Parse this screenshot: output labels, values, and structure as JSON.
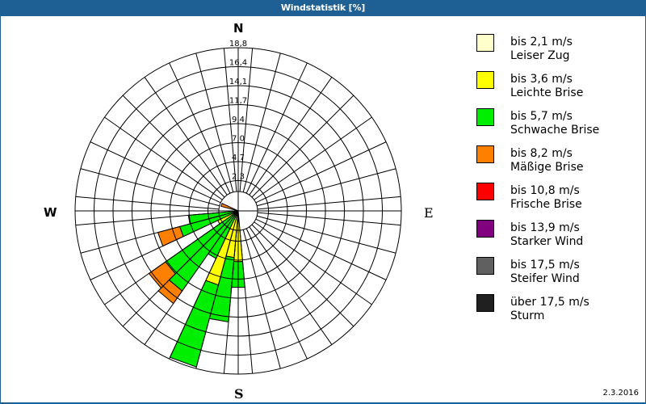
{
  "window": {
    "title": "Windstatistik [%]"
  },
  "compass": {
    "n": "N",
    "e": "E",
    "s": "S",
    "w": "W"
  },
  "footer": {
    "date": "2.3.2016"
  },
  "legend": [
    {
      "range": "bis 2,1 m/s",
      "name": "Leiser Zug",
      "color": "#ffffcc"
    },
    {
      "range": "bis 3,6 m/s",
      "name": "Leichte Brise",
      "color": "#ffff00"
    },
    {
      "range": "bis 5,7 m/s",
      "name": "Schwache Brise",
      "color": "#00ee00"
    },
    {
      "range": "bis 8,2 m/s",
      "name": "Mäßige Brise",
      "color": "#ff8000"
    },
    {
      "range": "bis 10,8 m/s",
      "name": "Frische Brise",
      "color": "#ff0000"
    },
    {
      "range": "bis 13,9 m/s",
      "name": "Starker Wind",
      "color": "#800080"
    },
    {
      "range": "bis 17,5 m/s",
      "name": "Steifer Wind",
      "color": "#606060"
    },
    {
      "range": "über 17,5 m/s",
      "name": "Sturm",
      "color": "#202020"
    }
  ],
  "chart_data": {
    "type": "wind-rose (polar stacked bar)",
    "title": "Windstatistik [%]",
    "radial_ticks": [
      "2,3",
      "4,7",
      "7,0",
      "9,4",
      "11,7",
      "14,1",
      "16,4",
      "18,8"
    ],
    "radial_max": 18.8,
    "sector_width_deg": 10,
    "directions": [
      "N",
      "E",
      "S",
      "W"
    ],
    "series_order": [
      "bis 2,1 m/s",
      "bis 3,6 m/s",
      "bis 5,7 m/s",
      "bis 8,2 m/s"
    ],
    "sectors": [
      {
        "dir_deg": 180,
        "segments": [
          {
            "class": "bis 3,6 m/s",
            "to": 4.9
          },
          {
            "class": "bis 5,7 m/s",
            "to": 8.1
          }
        ]
      },
      {
        "dir_deg": 190,
        "segments": [
          {
            "class": "bis 3,6 m/s",
            "to": 4.4
          },
          {
            "class": "bis 5,7 m/s",
            "to": 12.4
          }
        ]
      },
      {
        "dir_deg": 200,
        "segments": [
          {
            "class": "bis 3,6 m/s",
            "to": 8.1
          },
          {
            "class": "bis 5,7 m/s",
            "to": 18.6
          }
        ]
      },
      {
        "dir_deg": 210,
        "segments": [
          {
            "class": "bis 5,7 m/s",
            "to": 5.1
          }
        ]
      },
      {
        "dir_deg": 220,
        "segments": [
          {
            "class": "bis 5,7 m/s",
            "to": 10.7
          },
          {
            "class": "bis 8,2 m/s",
            "to": 12.6
          }
        ]
      },
      {
        "dir_deg": 230,
        "segments": [
          {
            "class": "bis 5,7 m/s",
            "to": 9.6
          },
          {
            "class": "bis 8,2 m/s",
            "to": 12.1
          }
        ]
      },
      {
        "dir_deg": 240,
        "segments": [
          {
            "class": "bis 3,6 m/s",
            "to": 1.4
          }
        ]
      },
      {
        "dir_deg": 250,
        "segments": [
          {
            "class": "bis 5,7 m/s",
            "to": 6.1
          },
          {
            "class": "bis 8,2 m/s",
            "to": 8.9
          }
        ]
      },
      {
        "dir_deg": 260,
        "segments": [
          {
            "class": "bis 5,7 m/s",
            "to": 4.8
          }
        ]
      },
      {
        "dir_deg": 290,
        "segments": [
          {
            "class": "bis 8,2 m/s",
            "to": 0.8
          }
        ]
      }
    ]
  }
}
